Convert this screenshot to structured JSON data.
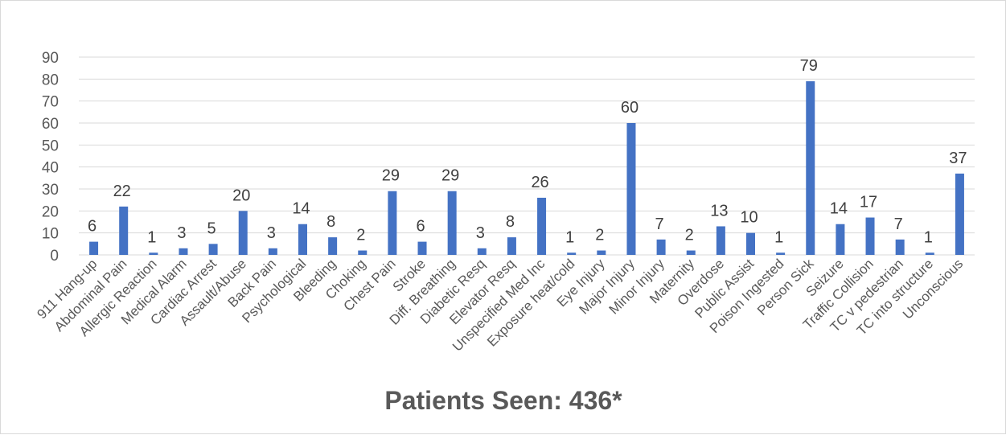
{
  "colors": {
    "bar": "#4472c4",
    "grid": "#d9d9d9",
    "axis_text": "#595959",
    "label_text": "#404040"
  },
  "chart_data": {
    "type": "bar",
    "title": "Patients Seen: 436*",
    "xlabel": "",
    "ylabel": "",
    "ylim": [
      0,
      90
    ],
    "yticks": [
      0,
      10,
      20,
      30,
      40,
      50,
      60,
      70,
      80,
      90
    ],
    "grid": true,
    "legend": "none",
    "categories": [
      "911 Hang-up",
      "Abdominal Pain",
      "Allergic Reaction",
      "Medical Alarm",
      "Cardiac Arrest",
      "Assault/Abuse",
      "Back Pain",
      "Psychological",
      "Bleeding",
      "Choking",
      "Chest Pain",
      "Stroke",
      "Diff. Breathing",
      "Diabetic Resq",
      "Elevator Resq",
      "Unspecified Med Inc",
      "Exposure heat/cold",
      "Eye Injury",
      "Major Injury",
      "Minor Injury",
      "Maternity",
      "Overdose",
      "Public Assist",
      "Poison Ingested",
      "Person Sick",
      "Seizure",
      "Traffic Collision",
      "TC v pedestrian",
      "TC into structure",
      "Unconscious"
    ],
    "values": [
      6,
      22,
      1,
      3,
      5,
      20,
      3,
      14,
      8,
      2,
      29,
      6,
      29,
      3,
      8,
      26,
      1,
      2,
      60,
      7,
      2,
      13,
      10,
      1,
      79,
      14,
      17,
      7,
      1,
      37
    ]
  }
}
